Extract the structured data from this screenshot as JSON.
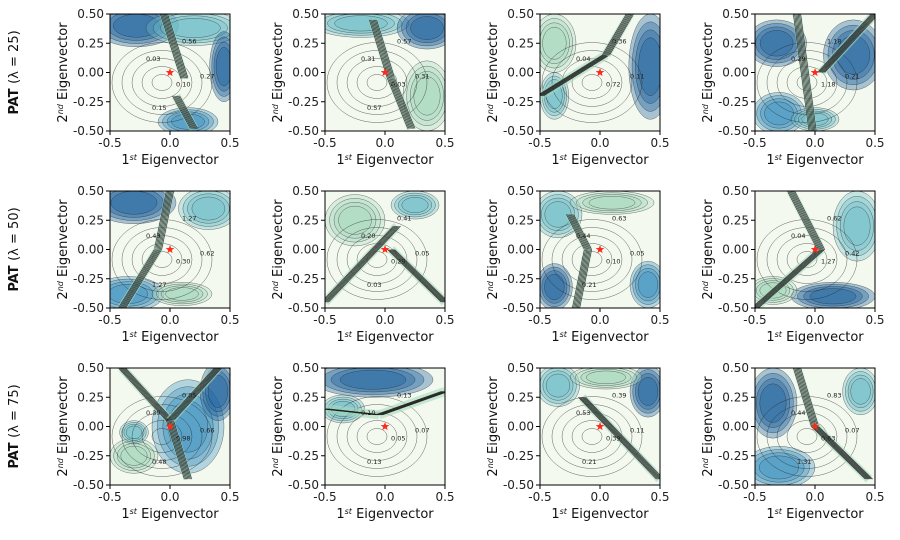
{
  "figure": {
    "rows": [
      {
        "label_bold": "PAT",
        "label_rest": "(λ = 25)"
      },
      {
        "label_bold": "PAT",
        "label_rest": "(λ = 50)"
      },
      {
        "label_bold": "PAT",
        "label_rest": "(λ = 75)"
      }
    ],
    "xlabel": "1st Eigenvector",
    "ylabel": "2nd Eigenvector",
    "marker": "red-star",
    "colors": {
      "low": "#f3f9ef",
      "mid1": "#d6eecf",
      "mid2": "#a6d8bd",
      "mid3": "#6cbcc9",
      "mid4": "#3a8fc0",
      "high": "#1b5f9e",
      "contour": "#222222",
      "marker": "#ff2a1a"
    }
  },
  "chart_data": [
    {
      "type": "contour",
      "row": 1,
      "col": 1,
      "xlabel": "1st Eigenvector",
      "ylabel": "2nd Eigenvector",
      "xlim": [
        -0.5,
        0.5
      ],
      "ylim": [
        -0.5,
        0.5
      ],
      "xticks": [
        "-0.5",
        "0.0",
        "0.5"
      ],
      "yticks": [
        "0.50",
        "0.25",
        "0.00",
        "-0.25",
        "-0.50"
      ],
      "contour_labels": [
        "0.56",
        "0.03",
        "0.10",
        "0.27",
        "0.15"
      ],
      "marker": [
        0,
        0
      ]
    },
    {
      "type": "contour",
      "row": 1,
      "col": 2,
      "xlabel": "1st Eigenvector",
      "ylabel": "2nd Eigenvector",
      "xlim": [
        -0.5,
        0.5
      ],
      "ylim": [
        -0.5,
        0.5
      ],
      "xticks": [
        "-0.5",
        "0.0",
        "0.5"
      ],
      "yticks": [
        "0.50",
        "0.25",
        "0.00",
        "-0.25",
        "-0.50"
      ],
      "contour_labels": [
        "0.57",
        "0.31",
        "0.03",
        "0.31",
        "0.57"
      ],
      "marker": [
        0,
        0
      ]
    },
    {
      "type": "contour",
      "row": 1,
      "col": 3,
      "xlabel": "1st Eigenvector",
      "ylabel": "2nd Eigenvector",
      "xlim": [
        -0.5,
        0.5
      ],
      "ylim": [
        -0.5,
        0.5
      ],
      "xticks": [
        "-0.5",
        "0.0",
        "0.5"
      ],
      "yticks": [
        "0.50",
        "0.25",
        "0.00",
        "-0.25",
        "-0.50"
      ],
      "contour_labels": [
        "0.36",
        "0.04",
        "0.72",
        "0.11"
      ],
      "marker": [
        0,
        0
      ]
    },
    {
      "type": "contour",
      "row": 1,
      "col": 4,
      "xlabel": "1st Eigenvector",
      "ylabel": "2nd Eigenvector",
      "xlim": [
        -0.5,
        0.5
      ],
      "ylim": [
        -0.5,
        0.5
      ],
      "xticks": [
        "-0.5",
        "0.0",
        "0.5"
      ],
      "yticks": [
        "0.50",
        "0.25",
        "0.00",
        "-0.25",
        "-0.50"
      ],
      "contour_labels": [
        "1.18",
        "0.29",
        "1.18",
        "0.21"
      ],
      "marker": [
        0,
        0
      ]
    },
    {
      "type": "contour",
      "row": 2,
      "col": 1,
      "xlabel": "1st Eigenvector",
      "ylabel": "2nd Eigenvector",
      "xlim": [
        -0.5,
        0.5
      ],
      "ylim": [
        -0.5,
        0.5
      ],
      "xticks": [
        "-0.5",
        "0.0",
        "0.5"
      ],
      "yticks": [
        "0.50",
        "0.25",
        "0.00",
        "-0.25",
        "-0.50"
      ],
      "contour_labels": [
        "1.27",
        "0.43",
        "0.30",
        "0.62",
        "1.27"
      ],
      "marker": [
        0,
        0
      ]
    },
    {
      "type": "contour",
      "row": 2,
      "col": 2,
      "xlabel": "1st Eigenvector",
      "ylabel": "2nd Eigenvector",
      "xlim": [
        -0.5,
        0.5
      ],
      "ylim": [
        -0.5,
        0.5
      ],
      "xticks": [
        "-0.5",
        "0.0",
        "0.5"
      ],
      "yticks": [
        "0.50",
        "0.25",
        "0.00",
        "-0.25",
        "-0.50"
      ],
      "contour_labels": [
        "0.41",
        "0.20",
        "0.29",
        "0.05",
        "0.03"
      ],
      "marker": [
        0,
        0
      ]
    },
    {
      "type": "contour",
      "row": 2,
      "col": 3,
      "xlabel": "1st Eigenvector",
      "ylabel": "2nd Eigenvector",
      "xlim": [
        -0.5,
        0.5
      ],
      "ylim": [
        -0.5,
        0.5
      ],
      "xticks": [
        "-0.5",
        "0.0",
        "0.5"
      ],
      "yticks": [
        "0.50",
        "0.25",
        "0.00",
        "-0.25",
        "-0.50"
      ],
      "contour_labels": [
        "0.63",
        "0.44",
        "0.10",
        "0.05",
        "0.21"
      ],
      "marker": [
        0,
        0
      ]
    },
    {
      "type": "contour",
      "row": 2,
      "col": 4,
      "xlabel": "1st Eigenvector",
      "ylabel": "2nd Eigenvector",
      "xlim": [
        -0.5,
        0.5
      ],
      "ylim": [
        -0.5,
        0.5
      ],
      "xticks": [
        "-0.5",
        "0.0",
        "0.5"
      ],
      "yticks": [
        "0.50",
        "0.25",
        "0.00",
        "-0.25",
        "-0.50"
      ],
      "contour_labels": [
        "0.62",
        "0.04",
        "1.27",
        "0.42"
      ],
      "marker": [
        0,
        0
      ]
    },
    {
      "type": "contour",
      "row": 3,
      "col": 1,
      "xlabel": "1st Eigenvector",
      "ylabel": "2nd Eigenvector",
      "xlim": [
        -0.5,
        0.5
      ],
      "ylim": [
        -0.5,
        0.5
      ],
      "xticks": [
        "-0.5",
        "0.0",
        "0.5"
      ],
      "yticks": [
        "0.50",
        "0.25",
        "0.00",
        "-0.25",
        "-0.50"
      ],
      "contour_labels": [
        "0.05",
        "0.39",
        "0.98",
        "0.66",
        "0.48"
      ],
      "marker": [
        0,
        0
      ]
    },
    {
      "type": "contour",
      "row": 3,
      "col": 2,
      "xlabel": "1st Eigenvector",
      "ylabel": "2nd Eigenvector",
      "xlim": [
        -0.5,
        0.5
      ],
      "ylim": [
        -0.5,
        0.5
      ],
      "xticks": [
        "-0.5",
        "0.0",
        "0.5"
      ],
      "yticks": [
        "0.50",
        "0.25",
        "0.00",
        "-0.25",
        "-0.50"
      ],
      "contour_labels": [
        "0.13",
        "0.10",
        "0.05",
        "0.07",
        "0.13"
      ],
      "marker": [
        0,
        0
      ]
    },
    {
      "type": "contour",
      "row": 3,
      "col": 3,
      "xlabel": "1st Eigenvector",
      "ylabel": "2nd Eigenvector",
      "xlim": [
        -0.5,
        0.5
      ],
      "ylim": [
        -0.5,
        0.5
      ],
      "xticks": [
        "-0.5",
        "0.0",
        "0.5"
      ],
      "yticks": [
        "0.50",
        "0.25",
        "0.00",
        "-0.25",
        "-0.50"
      ],
      "contour_labels": [
        "0.39",
        "0.53",
        "0.39",
        "0.11",
        "0.21"
      ],
      "marker": [
        0,
        0
      ]
    },
    {
      "type": "contour",
      "row": 3,
      "col": 4,
      "xlabel": "1st Eigenvector",
      "ylabel": "2nd Eigenvector",
      "xlim": [
        -0.5,
        0.5
      ],
      "ylim": [
        -0.5,
        0.5
      ],
      "xticks": [
        "-0.5",
        "0.0",
        "0.5"
      ],
      "yticks": [
        "0.50",
        "0.25",
        "0.00",
        "-0.25",
        "-0.50"
      ],
      "contour_labels": [
        "0.83",
        "0.44",
        "0.63",
        "0.07",
        "1.31"
      ],
      "marker": [
        0,
        0
      ]
    }
  ]
}
